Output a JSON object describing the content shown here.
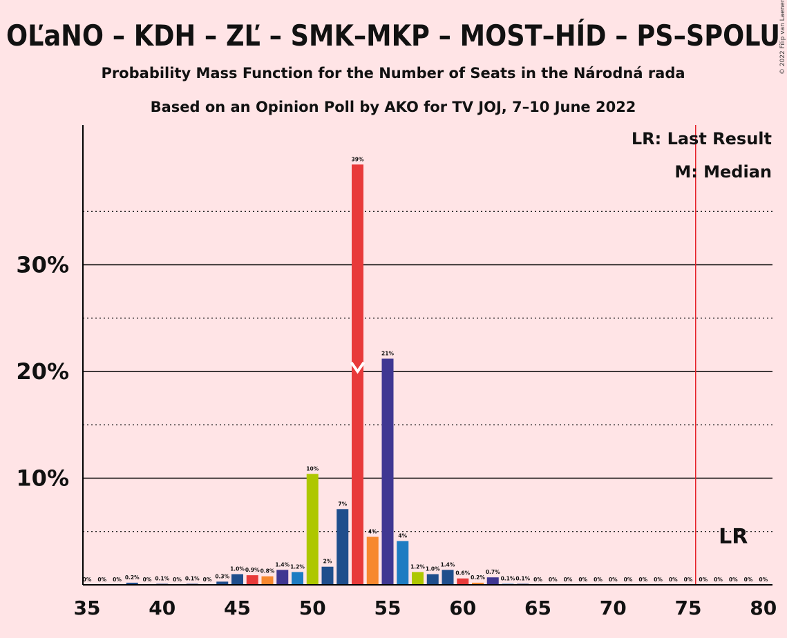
{
  "chart_data": {
    "type": "bar",
    "title": "OĽaNO – KDH – ZĽ – SMK–MKP – MOST–HÍD – PS–SPOLU",
    "subtitle_1": "Probability Mass Function for the Number of Seats in the Národná rada",
    "subtitle_2": "Based on an Opinion Poll by AKO for TV JOJ, 7–10 June 2022",
    "copyright": "© 2022 Filip van Laenen",
    "xlabel": "",
    "ylabel": "",
    "xlim": [
      35,
      80
    ],
    "ylim": [
      0,
      43
    ],
    "x_ticks": [
      "35",
      "40",
      "45",
      "50",
      "55",
      "60",
      "65",
      "70",
      "75",
      "80"
    ],
    "y_ticks": [
      "10%",
      "20%",
      "30%"
    ],
    "grid": true,
    "legend": {
      "lr": "LR: Last Result",
      "median": "M: Median",
      "position": "top-right"
    },
    "last_result": 76,
    "last_result_label": "LR",
    "median": 53,
    "series": [
      {
        "x": [
          35,
          36,
          37,
          38,
          39,
          40,
          41,
          42,
          43,
          44,
          45,
          46,
          47,
          48,
          49,
          50,
          51,
          52,
          53,
          54,
          55,
          56,
          57,
          58,
          59,
          60,
          61,
          62,
          63,
          64,
          65,
          66,
          67,
          68,
          69,
          70,
          71,
          72,
          73,
          74,
          75,
          76,
          77,
          78,
          79,
          80
        ],
        "values": [
          0,
          0,
          0,
          0.2,
          0,
          0.1,
          0,
          0.1,
          0,
          0.3,
          1.0,
          0.9,
          0.8,
          1.4,
          1.2,
          10.4,
          1.7,
          7.1,
          39.4,
          4.5,
          21.2,
          4.1,
          1.2,
          1.0,
          1.4,
          0.6,
          0.2,
          0.7,
          0.1,
          0.1,
          0,
          0,
          0,
          0,
          0,
          0,
          0,
          0,
          0,
          0,
          0,
          0,
          0,
          0,
          0,
          0
        ],
        "labels": [
          "0%",
          "0%",
          "0%",
          "0.2%",
          "0%",
          "0.1%",
          "0%",
          "0.1%",
          "0%",
          "0.3%",
          "1.0%",
          "0.9%",
          "0.8%",
          "1.4%",
          "1.2%",
          "10%",
          "2%",
          "7%",
          "39%",
          "4%",
          "21%",
          "4%",
          "1.2%",
          "1.0%",
          "1.4%",
          "0.6%",
          "0.2%",
          "0.7%",
          "0.1%",
          "0.1%",
          "0%",
          "0%",
          "0%",
          "0%",
          "0%",
          "0%",
          "0%",
          "0%",
          "0%",
          "0%",
          "0%",
          "0%",
          "0%",
          "0%",
          "0%",
          "0%"
        ],
        "colors": [
          "#1F4E8C",
          "#1F4E8C",
          "#1F4E8C",
          "#1F4E8C",
          "#1F4E8C",
          "#1F4E8C",
          "#1F4E8C",
          "#1F4E8C",
          "#1F4E8C",
          "#1F4E8C",
          "#1F4E8C",
          "#E83A3A",
          "#F7882F",
          "#3F3792",
          "#1E7CC2",
          "#AEC700",
          "#1F4E8C",
          "#1F4E8C",
          "#E83A3A",
          "#F7882F",
          "#3F3792",
          "#1E7CC2",
          "#AEC700",
          "#1F4E8C",
          "#1F4E8C",
          "#E83A3A",
          "#F7882F",
          "#3F3792",
          "#1E7CC2",
          "#1F4E8C",
          "#1F4E8C",
          "#1F4E8C",
          "#1F4E8C",
          "#1F4E8C",
          "#1F4E8C",
          "#1F4E8C",
          "#1F4E8C",
          "#1F4E8C",
          "#1F4E8C",
          "#1F4E8C",
          "#1F4E8C",
          "#1F4E8C",
          "#1F4E8C",
          "#1F4E8C",
          "#1F4E8C",
          "#1F4E8C"
        ]
      }
    ],
    "colors": {
      "background": "#FFE4E6",
      "lr_line": "#E5222A",
      "median_mark": "#FFFFFF"
    }
  }
}
